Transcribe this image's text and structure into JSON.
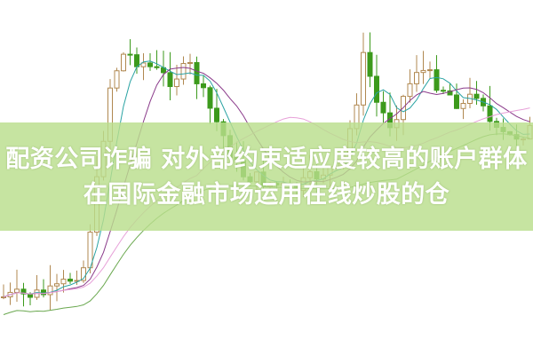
{
  "headline": {
    "line1": "配资公司诈骗 对外部约束适应度较高的账户群体",
    "line2": "在国际金融市场运用在线炒股的仓"
  },
  "colors": {
    "up_candle": "#b08850",
    "down_candle": "#3c9a1c",
    "ma_short": "#2aa3a3",
    "ma_mid": "#8a3a8a",
    "ma_long": "#e7a0d8",
    "ma_longest": "#6aa84f",
    "banner": "#bade8c"
  }
}
